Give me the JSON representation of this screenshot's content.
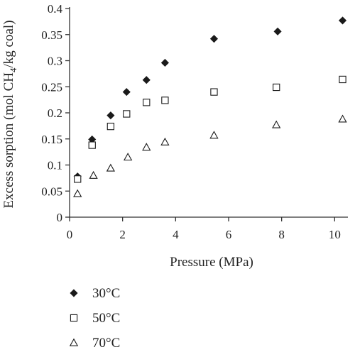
{
  "chart_data": {
    "type": "scatter",
    "xlabel": "Pressure (MPa)",
    "ylabel_prefix": "Excess sorption (mol CH",
    "ylabel_sub": "4",
    "ylabel_suffix": "/kg coal)",
    "xlim": [
      0,
      10.5
    ],
    "ylim": [
      0,
      0.4
    ],
    "xticks": [
      "0",
      "2",
      "4",
      "6",
      "8",
      "10"
    ],
    "yticks": [
      "0",
      "0.05",
      "0.1",
      "0.15",
      "0.2",
      "0.25",
      "0.3",
      "0.35",
      "0.4"
    ],
    "xtick_values": [
      0,
      2,
      4,
      6,
      8,
      10
    ],
    "ytick_values": [
      0,
      0.05,
      0.1,
      0.15,
      0.2,
      0.25,
      0.3,
      0.35,
      0.4
    ],
    "grid": false,
    "legend_position": "bottom-left",
    "series": [
      {
        "name": "30°C",
        "marker": "diamond",
        "color": "#1a1a1a",
        "points": [
          [
            0.3,
            0.078
          ],
          [
            0.85,
            0.149
          ],
          [
            1.55,
            0.195
          ],
          [
            2.15,
            0.24
          ],
          [
            2.9,
            0.263
          ],
          [
            3.6,
            0.296
          ],
          [
            5.45,
            0.342
          ],
          [
            7.85,
            0.356
          ],
          [
            10.3,
            0.377
          ]
        ]
      },
      {
        "name": "50°C",
        "marker": "square-open",
        "color": "#1a1a1a",
        "points": [
          [
            0.3,
            0.073
          ],
          [
            0.85,
            0.138
          ],
          [
            1.55,
            0.174
          ],
          [
            2.15,
            0.198
          ],
          [
            2.9,
            0.22
          ],
          [
            3.6,
            0.224
          ],
          [
            5.45,
            0.24
          ],
          [
            7.8,
            0.249
          ],
          [
            10.3,
            0.264
          ]
        ]
      },
      {
        "name": "70°C",
        "marker": "triangle-open",
        "color": "#1a1a1a",
        "points": [
          [
            0.3,
            0.045
          ],
          [
            0.9,
            0.08
          ],
          [
            1.55,
            0.094
          ],
          [
            2.2,
            0.115
          ],
          [
            2.9,
            0.134
          ],
          [
            3.6,
            0.144
          ],
          [
            5.45,
            0.157
          ],
          [
            7.8,
            0.177
          ],
          [
            10.3,
            0.188
          ]
        ]
      }
    ]
  }
}
